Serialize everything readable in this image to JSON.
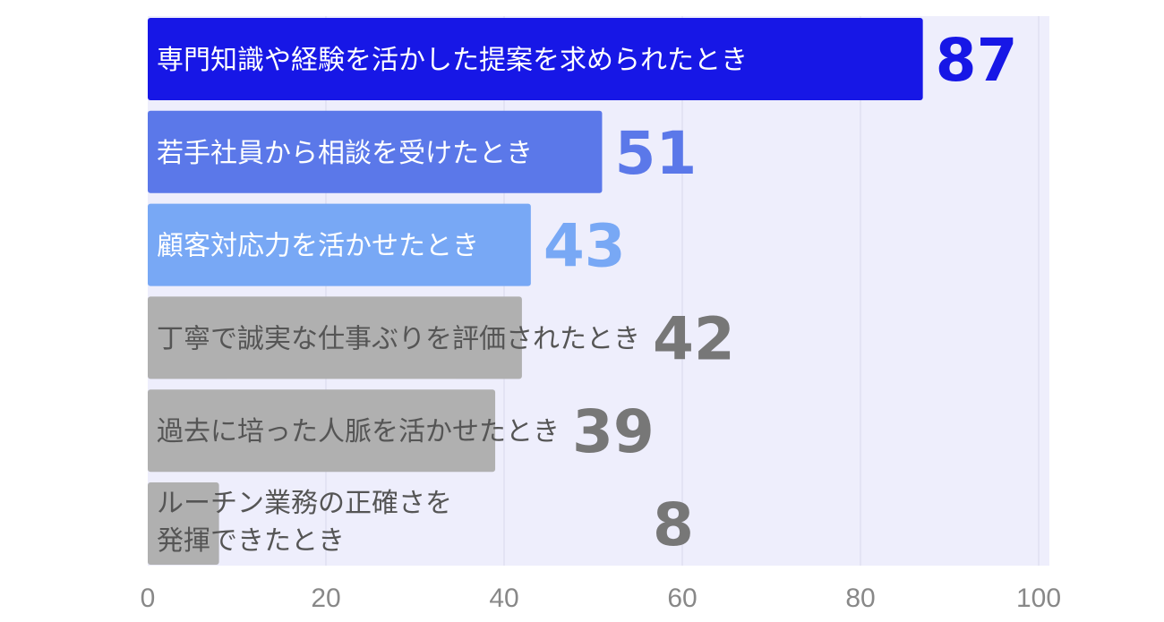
{
  "chart_data": {
    "type": "bar",
    "orientation": "horizontal",
    "categories": [
      "専門知識や経験を活かした提案を求められたとき",
      "若手社員から相談を受けたとき",
      "顧客対応力を活かせたとき",
      "丁寧で誠実な仕事ぶりを評価されたとき",
      "過去に培った人脈を活かせたとき",
      "ルーチン業務の正確さを\n発揮できたとき"
    ],
    "values": [
      87,
      51,
      43,
      42,
      39,
      8
    ],
    "bar_colors": [
      "#1717e6",
      "#5b78e9",
      "#78a8f5",
      "#b0b0b0",
      "#b0b0b0",
      "#b0b0b0"
    ],
    "label_colors": [
      "#ffffff",
      "#ffffff",
      "#ffffff",
      "#555555",
      "#555555",
      "#555555"
    ],
    "value_colors": [
      "#1717e6",
      "#5b78e9",
      "#78a8f5",
      "#777777",
      "#777777",
      "#777777"
    ],
    "xlim": [
      0,
      100
    ],
    "xticks": [
      "0",
      "20",
      "40",
      "60",
      "80",
      "100"
    ],
    "grid": true,
    "plot_background": "#eeeefc",
    "title": "",
    "xlabel": "",
    "ylabel": ""
  }
}
